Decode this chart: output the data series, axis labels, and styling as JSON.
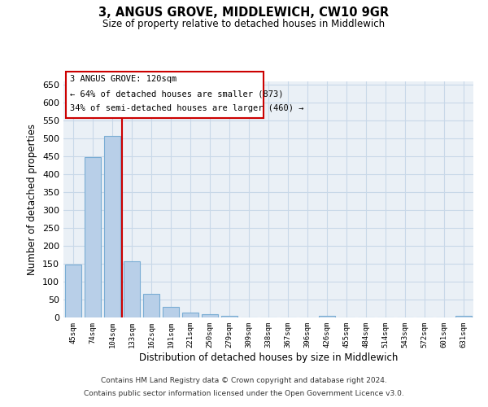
{
  "title": "3, ANGUS GROVE, MIDDLEWICH, CW10 9GR",
  "subtitle": "Size of property relative to detached houses in Middlewich",
  "xlabel": "Distribution of detached houses by size in Middlewich",
  "ylabel": "Number of detached properties",
  "footer_line1": "Contains HM Land Registry data © Crown copyright and database right 2024.",
  "footer_line2": "Contains public sector information licensed under the Open Government Licence v3.0.",
  "categories": [
    "45sqm",
    "74sqm",
    "104sqm",
    "133sqm",
    "162sqm",
    "191sqm",
    "221sqm",
    "250sqm",
    "279sqm",
    "309sqm",
    "338sqm",
    "367sqm",
    "396sqm",
    "426sqm",
    "455sqm",
    "484sqm",
    "514sqm",
    "543sqm",
    "572sqm",
    "601sqm",
    "631sqm"
  ],
  "values": [
    147,
    449,
    507,
    158,
    65,
    30,
    13,
    8,
    5,
    0,
    0,
    0,
    0,
    5,
    0,
    0,
    0,
    0,
    0,
    0,
    5
  ],
  "bar_color": "#b8cfe8",
  "bar_edge_color": "#7aadd4",
  "grid_color": "#c8d8e8",
  "background_color": "#eaf0f6",
  "annotation_line1": "3 ANGUS GROVE: 120sqm",
  "annotation_line2": "← 64% of detached houses are smaller (873)",
  "annotation_line3": "34% of semi-detached houses are larger (460) →",
  "annotation_box_color": "#cc0000",
  "red_line_x": 2.5,
  "ylim": [
    0,
    660
  ],
  "yticks": [
    0,
    50,
    100,
    150,
    200,
    250,
    300,
    350,
    400,
    450,
    500,
    550,
    600,
    650
  ]
}
